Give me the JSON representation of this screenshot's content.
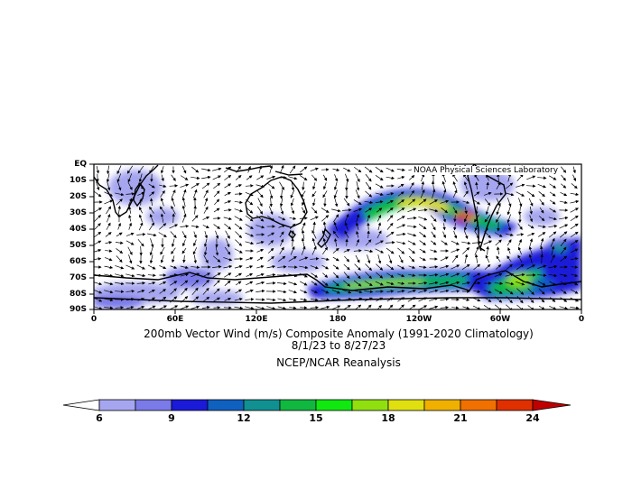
{
  "map": {
    "credit": "NOAA Physical Sciences Laboratory",
    "lat_labels": [
      "EQ",
      "10S",
      "20S",
      "30S",
      "40S",
      "50S",
      "60S",
      "70S",
      "80S",
      "90S"
    ],
    "lon_labels": [
      "0",
      "60E",
      "120E",
      "180",
      "120W",
      "60W",
      "0"
    ],
    "lat_range": [
      -90,
      0
    ],
    "lon_range": [
      0,
      360
    ],
    "shading": "wind speed anomaly (m/s)",
    "vectors": "wind vector anomaly arrows"
  },
  "caption": {
    "line1": "200mb Vector Wind (m/s) Composite Anomaly (1991-2020 Climatology)",
    "line2": "8/1/23  to 8/27/23",
    "line3": "NCEP/NCAR Reanalysis"
  },
  "colorbar": {
    "ticks": [
      "6",
      "9",
      "12",
      "15",
      "18",
      "21",
      "24"
    ],
    "colors": [
      "#a6a6f0",
      "#7a7ae8",
      "#1a1ad8",
      "#1060c0",
      "#109090",
      "#10b840",
      "#10e810",
      "#90e010",
      "#e0e010",
      "#f0b000",
      "#f07000",
      "#e03000",
      "#c00000"
    ]
  }
}
